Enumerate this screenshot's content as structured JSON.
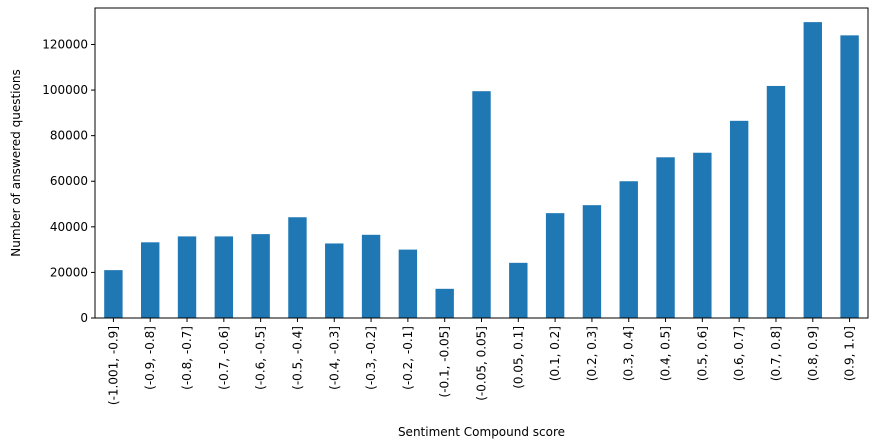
{
  "chart_data": {
    "type": "bar",
    "title": "",
    "xlabel": "Sentiment Compound score",
    "ylabel": "Number of answered questions",
    "ylim": [
      0,
      136000
    ],
    "yticks": [
      0,
      20000,
      40000,
      60000,
      80000,
      100000,
      120000
    ],
    "ytick_labels": [
      "0",
      "20000",
      "40000",
      "60000",
      "80000",
      "100000",
      "120000"
    ],
    "grid": false,
    "legend": "none",
    "bar_color": "#1f77b4",
    "categories": [
      "(-1.001, -0.9]",
      "(-0.9, -0.8]",
      "(-0.8, -0.7]",
      "(-0.7, -0.6]",
      "(-0.6, -0.5]",
      "(-0.5, -0.4]",
      "(-0.4, -0.3]",
      "(-0.3, -0.2]",
      "(-0.2, -0.1]",
      "(-0.1, -0.05]",
      "(-0.05, 0.05]",
      "(0.05, 0.1]",
      "(0.1, 0.2]",
      "(0.2, 0.3]",
      "(0.3, 0.4]",
      "(0.4, 0.5]",
      "(0.5, 0.6]",
      "(0.6, 0.7]",
      "(0.7, 0.8]",
      "(0.8, 0.9]",
      "(0.9, 1.0]"
    ],
    "values": [
      21000,
      33200,
      35800,
      35800,
      36800,
      44200,
      32700,
      36500,
      30000,
      12800,
      99500,
      24200,
      46000,
      49500,
      60000,
      70500,
      72500,
      86500,
      101800,
      129800,
      124000
    ]
  }
}
